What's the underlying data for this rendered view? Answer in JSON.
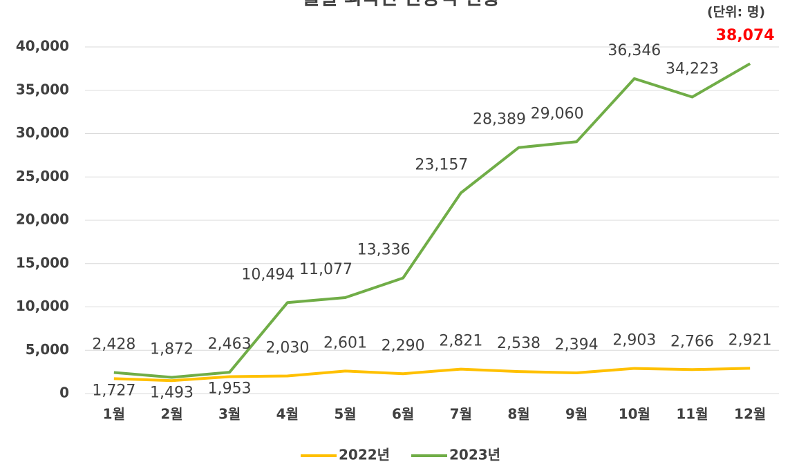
{
  "chart_data": {
    "type": "line",
    "title": "월별 외국인 관광객 현황",
    "unit_note": "(단위: 명)",
    "categories": [
      "1월",
      "2월",
      "3월",
      "4월",
      "5월",
      "6월",
      "7월",
      "8월",
      "9월",
      "10월",
      "11월",
      "12월"
    ],
    "series": [
      {
        "name": "2022년",
        "color": "#FFC000",
        "values": [
          1727,
          1493,
          1953,
          2030,
          2601,
          2290,
          2821,
          2538,
          2394,
          2903,
          2766,
          2921
        ],
        "value_labels": [
          "1,727",
          "1,493",
          "1,953",
          "2,030",
          "2,601",
          "2,290",
          "2,821",
          "2,538",
          "2,394",
          "2,903",
          "2,766",
          "2,921"
        ]
      },
      {
        "name": "2023년",
        "color": "#70AD47",
        "values": [
          2428,
          1872,
          2463,
          10494,
          11077,
          13336,
          23157,
          28389,
          29060,
          36346,
          34223,
          38074
        ],
        "value_labels": [
          "2,428",
          "1,872",
          "2,463",
          "10,494",
          "11,077",
          "13,336",
          "23,157",
          "28,389",
          "29,060",
          "36,346",
          "34,223",
          "38,074"
        ]
      }
    ],
    "ylim": [
      0,
      40000
    ],
    "yticks": [
      0,
      {
        "value": 5000,
        "label": "5,000"
      },
      {
        "value": 10000,
        "label": "10,000"
      },
      {
        "value": 15000,
        "label": "15,000"
      },
      {
        "value": 20000,
        "label": "20,000"
      },
      {
        "value": 25000,
        "label": "25,000"
      },
      {
        "value": 30000,
        "label": "30,000"
      },
      {
        "value": 35000,
        "label": "35,000"
      },
      {
        "value": 40000,
        "label": "40,000"
      }
    ],
    "grid": true,
    "legend": "bottom",
    "highlight_color": "#FF0000"
  }
}
